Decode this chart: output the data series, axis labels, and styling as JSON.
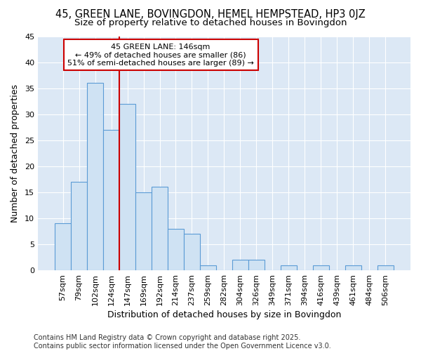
{
  "title": "45, GREEN LANE, BOVINGDON, HEMEL HEMPSTEAD, HP3 0JZ",
  "subtitle": "Size of property relative to detached houses in Bovingdon",
  "xlabel": "Distribution of detached houses by size in Bovingdon",
  "ylabel": "Number of detached properties",
  "categories": [
    "57sqm",
    "79sqm",
    "102sqm",
    "124sqm",
    "147sqm",
    "169sqm",
    "192sqm",
    "214sqm",
    "237sqm",
    "259sqm",
    "282sqm",
    "304sqm",
    "326sqm",
    "349sqm",
    "371sqm",
    "394sqm",
    "416sqm",
    "439sqm",
    "461sqm",
    "484sqm",
    "506sqm"
  ],
  "values": [
    9,
    17,
    36,
    27,
    32,
    15,
    16,
    8,
    7,
    1,
    0,
    2,
    2,
    0,
    1,
    0,
    1,
    0,
    1,
    0,
    1
  ],
  "bar_color": "#cfe2f3",
  "bar_edge_color": "#5b9bd5",
  "bar_width": 1.0,
  "ylim": [
    0,
    45
  ],
  "yticks": [
    0,
    5,
    10,
    15,
    20,
    25,
    30,
    35,
    40,
    45
  ],
  "reference_line_x": 4.0,
  "annotation_text_line1": "45 GREEN LANE: 146sqm",
  "annotation_text_line2": "← 49% of detached houses are smaller (86)",
  "annotation_text_line3": "51% of semi-detached houses are larger (89) →",
  "annotation_box_color": "white",
  "annotation_box_edge": "#cc0000",
  "footer_line1": "Contains HM Land Registry data © Crown copyright and database right 2025.",
  "footer_line2": "Contains public sector information licensed under the Open Government Licence v3.0.",
  "figure_bg": "#ffffff",
  "plot_bg": "#dce8f5",
  "grid_color": "#ffffff",
  "title_fontsize": 10.5,
  "subtitle_fontsize": 9.5,
  "axis_label_fontsize": 9,
  "tick_fontsize": 8,
  "annotation_fontsize": 8,
  "footer_fontsize": 7
}
